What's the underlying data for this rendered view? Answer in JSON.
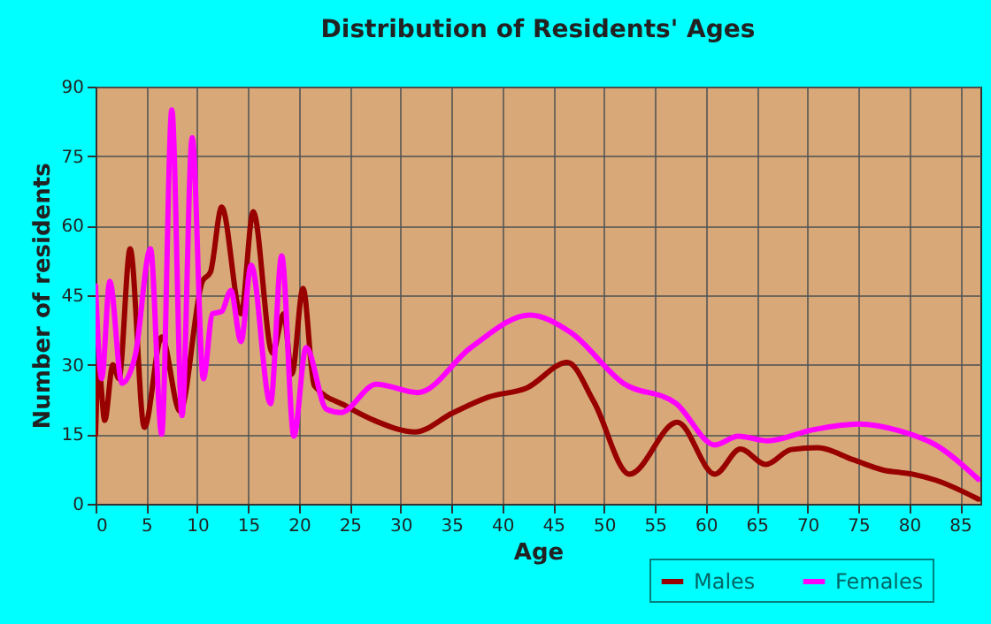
{
  "chart_data": {
    "type": "line",
    "title": "Distribution of Residents' Ages",
    "xlabel": "Age",
    "ylabel": "Number of residents",
    "xlim": [
      0,
      87
    ],
    "xticks": [
      0,
      5,
      10,
      15,
      20,
      25,
      30,
      35,
      40,
      45,
      50,
      55,
      60,
      65,
      70,
      75,
      80,
      85
    ],
    "ylim": [
      0,
      90
    ],
    "yticks": [
      0,
      15,
      30,
      45,
      60,
      75,
      90
    ],
    "grid": true,
    "legend": "bottom right",
    "line_style": "solid",
    "marker": "none",
    "series": [
      {
        "name": "Males",
        "color": "#990000",
        "x": [
          0,
          0.3,
          0.9,
          1.7,
          2.3,
          3.4,
          4.8,
          6.5,
          8.3,
          10.5,
          11.3,
          12.4,
          14.3,
          15.5,
          17.4,
          18.5,
          19.3,
          20.4,
          21.5,
          24.7,
          27.6,
          31.4,
          35.2,
          38.6,
          42.4,
          46.4,
          49,
          52.5,
          57.2,
          60.9,
          63.4,
          65.9,
          68.4,
          71,
          74.5,
          77.4,
          80.3,
          82.6,
          86.8
        ],
        "values": [
          15,
          30,
          18,
          30,
          27,
          55,
          16.5,
          36,
          20,
          48,
          50,
          64,
          41,
          63,
          32.5,
          41,
          28,
          46.5,
          25.5,
          21,
          17.8,
          15.5,
          19.7,
          23,
          25,
          30.5,
          22,
          6.4,
          17.6,
          6.4,
          11.8,
          8.5,
          11.7,
          12.1,
          9.5,
          7.3,
          6.4,
          5.1,
          1
        ]
      },
      {
        "name": "Females",
        "color": "#ff00ff",
        "x": [
          0,
          0.6,
          1.4,
          2.6,
          3.9,
          5.4,
          6.5,
          7.5,
          8.5,
          9.5,
          10.6,
          11.5,
          12.4,
          13.3,
          14.3,
          15.3,
          17.2,
          18.3,
          19.5,
          20.7,
          22.7,
          24.1,
          27.6,
          31.7,
          36.9,
          42.7,
          46.7,
          51.9,
          57.1,
          60.9,
          63.2,
          66.1,
          70.4,
          75,
          79.1,
          82.6,
          86.8
        ],
        "values": [
          47,
          27,
          48,
          26,
          32,
          55,
          15,
          85,
          19,
          79,
          27,
          41,
          41.5,
          46,
          35,
          51.5,
          21.6,
          53.5,
          14.6,
          33.7,
          20.4,
          19.7,
          25.8,
          24,
          33.7,
          40.7,
          37,
          26,
          21.6,
          12.7,
          14.6,
          13.6,
          15.9,
          17.2,
          15.7,
          12.7,
          5.3
        ]
      }
    ]
  }
}
